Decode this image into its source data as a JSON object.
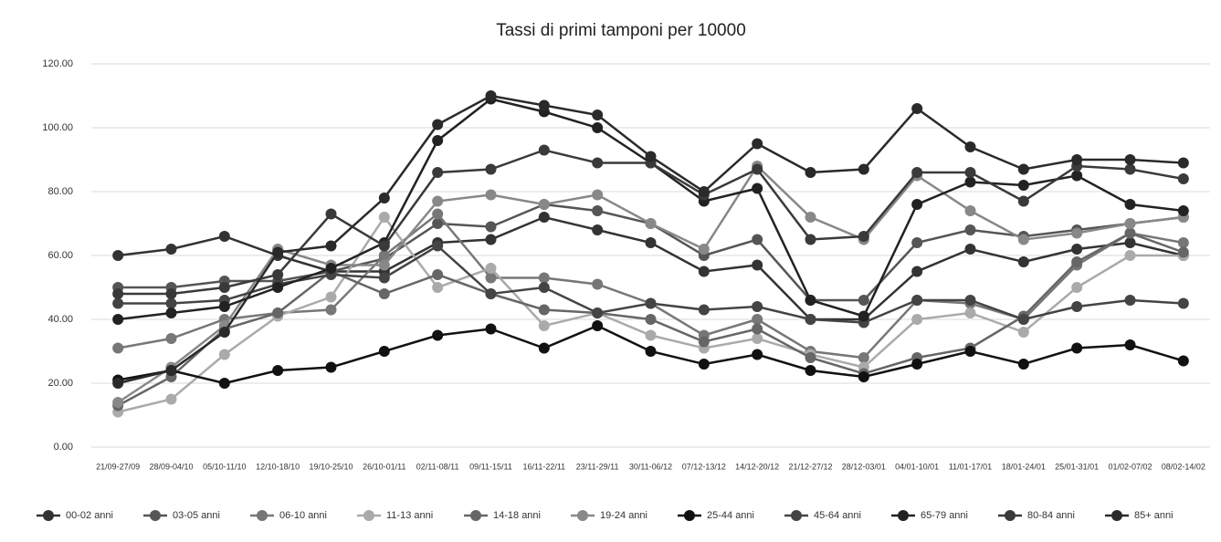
{
  "chart_data": {
    "type": "line",
    "title": "Tassi di primi tamponi per 10000",
    "categories": [
      "21/09-27/09",
      "28/09-04/10",
      "05/10-11/10",
      "12/10-18/10",
      "19/10-25/10",
      "26/10-01/11",
      "02/11-08/11",
      "09/11-15/11",
      "16/11-22/11",
      "23/11-29/11",
      "30/11-06/12",
      "07/12-13/12",
      "14/12-20/12",
      "21/12-27/12",
      "28/12-03/01",
      "04/01-10/01",
      "11/01-17/01",
      "18/01-24/01",
      "25/01-31/01",
      "01/02-07/02",
      "08/02-14/02"
    ],
    "series": [
      {
        "name": "00-02 anni",
        "color": "#333333",
        "values": [
          60,
          62,
          66,
          60,
          55,
          55,
          64,
          65,
          72,
          68,
          64,
          55,
          57,
          40,
          40,
          55,
          62,
          58,
          62,
          64,
          60
        ]
      },
      {
        "name": "03-05 anni",
        "color": "#555555",
        "values": [
          50,
          50,
          52,
          52,
          55,
          59,
          70,
          69,
          76,
          74,
          70,
          60,
          65,
          46,
          46,
          64,
          68,
          66,
          68,
          70,
          72
        ]
      },
      {
        "name": "06-10 anni",
        "color": "#777777",
        "values": [
          31,
          34,
          40,
          42,
          43,
          60,
          73,
          53,
          53,
          51,
          45,
          35,
          40,
          30,
          28,
          46,
          45,
          40,
          57,
          67,
          64
        ]
      },
      {
        "name": "11-13 anni",
        "color": "#aaaaaa",
        "values": [
          11,
          15,
          29,
          41,
          47,
          72,
          50,
          56,
          38,
          42,
          35,
          31,
          34,
          29,
          25,
          40,
          42,
          36,
          50,
          60,
          60
        ]
      },
      {
        "name": "14-18 anni",
        "color": "#666666",
        "values": [
          13,
          22,
          37,
          42,
          55,
          48,
          54,
          48,
          43,
          42,
          40,
          33,
          37,
          28,
          23,
          28,
          31,
          41,
          58,
          67,
          61
        ]
      },
      {
        "name": "19-24 anni",
        "color": "#888888",
        "values": [
          14,
          25,
          38,
          62,
          57,
          57,
          77,
          79,
          76,
          79,
          70,
          62,
          88,
          72,
          65,
          85,
          74,
          65,
          67,
          70,
          72
        ]
      },
      {
        "name": "25-44 anni",
        "color": "#111111",
        "values": [
          21,
          24,
          20,
          24,
          25,
          30,
          35,
          37,
          31,
          38,
          30,
          26,
          29,
          24,
          22,
          26,
          30,
          26,
          31,
          32,
          27
        ]
      },
      {
        "name": "45-64 anni",
        "color": "#444444",
        "values": [
          45,
          45,
          46,
          51,
          54,
          53,
          63,
          48,
          50,
          42,
          45,
          43,
          44,
          40,
          39,
          46,
          46,
          40,
          44,
          46,
          45
        ]
      },
      {
        "name": "65-79 anni",
        "color": "#222222",
        "values": [
          40,
          42,
          44,
          50,
          56,
          64,
          96,
          109,
          105,
          100,
          89,
          77,
          81,
          46,
          41,
          76,
          83,
          82,
          85,
          76,
          74
        ]
      },
      {
        "name": "80-84 anni",
        "color": "#3a3a3a",
        "values": [
          48,
          48,
          50,
          54,
          73,
          63,
          86,
          87,
          93,
          89,
          89,
          79,
          87,
          65,
          66,
          86,
          86,
          77,
          88,
          87,
          84
        ]
      },
      {
        "name": "85+ anni",
        "color": "#2a2a2a",
        "values": [
          20,
          24,
          36,
          61,
          63,
          78,
          101,
          110,
          107,
          104,
          91,
          80,
          95,
          86,
          87,
          106,
          94,
          87,
          90,
          90,
          89
        ]
      }
    ],
    "ylim": [
      0,
      120
    ],
    "yticks": [
      {
        "value": 0,
        "label": "0.00"
      },
      {
        "value": 20,
        "label": "20.00"
      },
      {
        "value": 40,
        "label": "40.00"
      },
      {
        "value": 60,
        "label": "60.00"
      },
      {
        "value": 80,
        "label": "80.00"
      },
      {
        "value": 100,
        "label": "100.00"
      },
      {
        "value": 120,
        "label": "120.00"
      }
    ],
    "grid": true,
    "legend": "bottom"
  }
}
